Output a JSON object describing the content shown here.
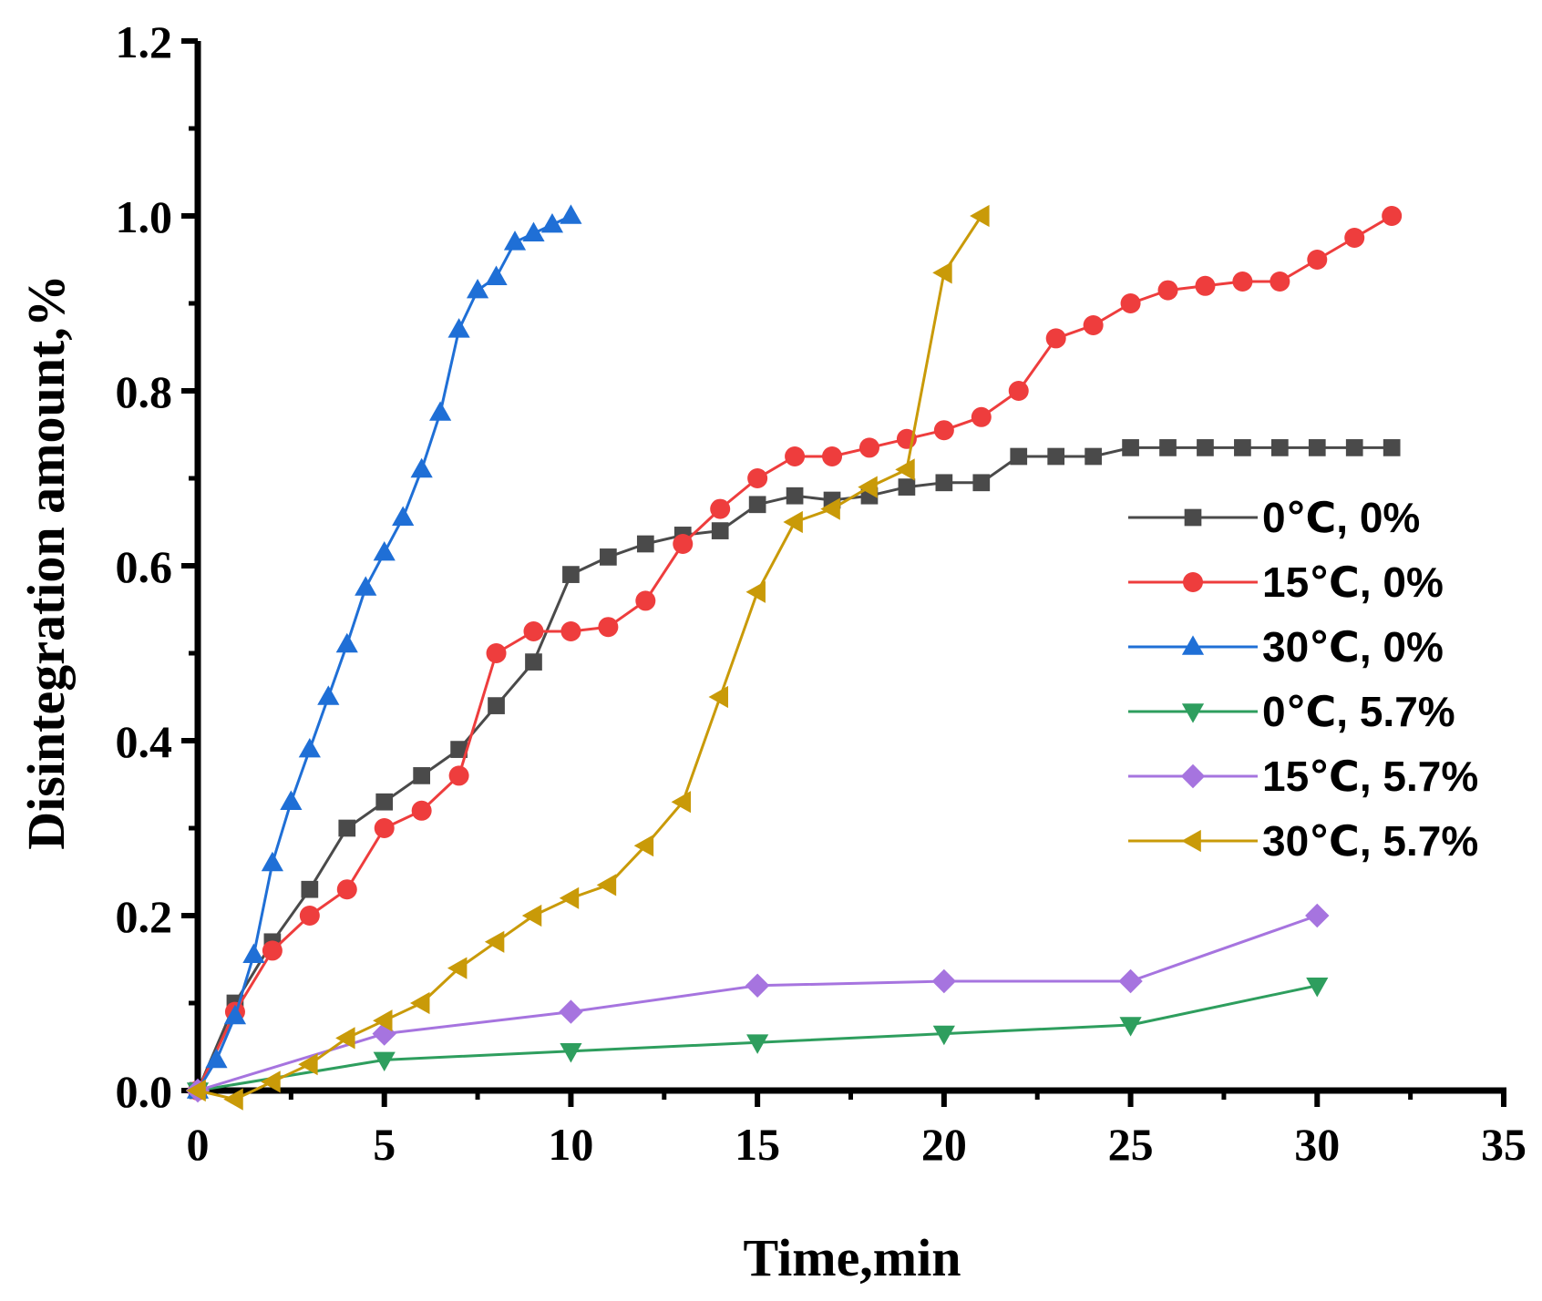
{
  "colors": {
    "axis": "#000000",
    "series_0C_0": "#4a4a4a",
    "series_15C_0": "#ee3d3d",
    "series_30C_0": "#1f6fd6",
    "series_0C_57": "#2e9e5e",
    "series_15C_57": "#a674df",
    "series_30C_57": "#c99a08"
  },
  "chart_data": {
    "type": "line",
    "title": "",
    "xlabel": "Time,min",
    "ylabel": "Disintegration amount,%",
    "xlim": [
      0,
      35
    ],
    "ylim": [
      0,
      1.2
    ],
    "xticks": [
      "0",
      "5",
      "10",
      "15",
      "20",
      "25",
      "30",
      "35"
    ],
    "yticks": [
      "0.0",
      "0.2",
      "0.4",
      "0.6",
      "0.8",
      "1.0",
      "1.2"
    ],
    "grid": false,
    "legend_position": "right",
    "series": [
      {
        "name": "0℃, 0%",
        "marker": "square",
        "color": "#4a4a4a",
        "x": [
          0,
          1,
          2,
          3,
          4,
          5,
          6,
          7,
          8,
          9,
          10,
          11,
          12,
          13,
          14,
          15,
          16,
          17,
          18,
          19,
          20,
          21,
          22,
          23,
          24,
          25,
          26,
          27,
          28,
          29,
          30,
          31,
          32
        ],
        "y": [
          0.0,
          0.1,
          0.17,
          0.23,
          0.3,
          0.33,
          0.36,
          0.39,
          0.44,
          0.49,
          0.59,
          0.61,
          0.625,
          0.635,
          0.64,
          0.67,
          0.68,
          0.675,
          0.68,
          0.69,
          0.695,
          0.695,
          0.725,
          0.725,
          0.725,
          0.735,
          0.735,
          0.735,
          0.735,
          0.735,
          0.735,
          0.735,
          0.735
        ]
      },
      {
        "name": "15℃, 0%",
        "marker": "circle",
        "color": "#ee3d3d",
        "x": [
          0,
          1,
          2,
          3,
          4,
          5,
          6,
          7,
          8,
          9,
          10,
          11,
          12,
          13,
          14,
          15,
          16,
          17,
          18,
          19,
          20,
          21,
          22,
          23,
          24,
          25,
          26,
          27,
          28,
          29,
          30,
          31,
          32
        ],
        "y": [
          0.0,
          0.09,
          0.16,
          0.2,
          0.23,
          0.3,
          0.32,
          0.36,
          0.5,
          0.525,
          0.525,
          0.53,
          0.56,
          0.625,
          0.665,
          0.7,
          0.725,
          0.725,
          0.735,
          0.745,
          0.755,
          0.77,
          0.8,
          0.86,
          0.875,
          0.9,
          0.915,
          0.92,
          0.925,
          0.925,
          0.95,
          0.975,
          1.0
        ]
      },
      {
        "name": "30℃, 0%",
        "marker": "triangle-up",
        "color": "#1f6fd6",
        "x": [
          0,
          0.5,
          1,
          1.5,
          2,
          2.5,
          3,
          3.5,
          4,
          4.5,
          5,
          5.5,
          6,
          6.5,
          7,
          7.5,
          8,
          8.5,
          9,
          9.5,
          10
        ],
        "y": [
          0.0,
          0.035,
          0.085,
          0.155,
          0.26,
          0.33,
          0.39,
          0.45,
          0.51,
          0.575,
          0.615,
          0.655,
          0.71,
          0.775,
          0.87,
          0.915,
          0.93,
          0.97,
          0.98,
          0.99,
          1.0
        ]
      },
      {
        "name": "0℃, 5.7%",
        "marker": "triangle-down",
        "color": "#2e9e5e",
        "x": [
          0,
          5,
          10,
          15,
          20,
          25,
          30
        ],
        "y": [
          0.0,
          0.035,
          0.045,
          0.055,
          0.065,
          0.075,
          0.12
        ]
      },
      {
        "name": "15℃, 5.7%",
        "marker": "diamond",
        "color": "#a674df",
        "x": [
          0,
          5,
          10,
          15,
          20,
          25,
          30
        ],
        "y": [
          0.0,
          0.065,
          0.09,
          0.12,
          0.125,
          0.125,
          0.2
        ]
      },
      {
        "name": "30℃, 5.7%",
        "marker": "triangle-left",
        "color": "#c99a08",
        "x": [
          0,
          1,
          2,
          3,
          4,
          5,
          6,
          7,
          8,
          9,
          10,
          11,
          12,
          13,
          14,
          15,
          16,
          17,
          18,
          19,
          20,
          21
        ],
        "y": [
          0.0,
          -0.01,
          0.01,
          0.03,
          0.06,
          0.08,
          0.1,
          0.14,
          0.17,
          0.2,
          0.22,
          0.235,
          0.28,
          0.33,
          0.45,
          0.57,
          0.65,
          0.665,
          0.69,
          0.71,
          0.935,
          1.0
        ]
      }
    ]
  }
}
